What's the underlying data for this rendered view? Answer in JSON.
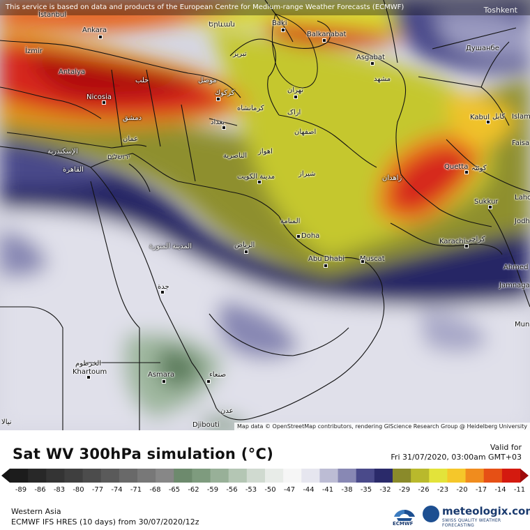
{
  "disclaimer": "This service is based on data and products of the European Centre for Medium-range Weather Forecasts (ECMWF)",
  "corner_city": "Toshkent",
  "attribution": "Map data © OpenStreetMap contributors, rendering GIScience Research Group @ Heidelberg University",
  "cities": {
    "istanbul": "İstanbul",
    "ankara": "Ankara",
    "izmir": "İzmir",
    "antalya": "Antalya",
    "nicosia": "Nicosia",
    "yerevan": "Երևան",
    "baki": "Baki",
    "balkanabat": "Balkanabat",
    "ashgabat": "Asgabat",
    "dushanbe": "Душанбе",
    "tabriz": "تبریز",
    "mosul": "موصل",
    "aleppo": "حلب",
    "kirkuk": "كركوك",
    "tehran": "تهران",
    "mashhad": "مشهد",
    "kermanshah": "کرمانشاه",
    "arak": "اراک",
    "baghdad": "بغداد",
    "damascus": "دمشق",
    "isfahan": "اصفهان",
    "kabul": "Kabul",
    "kabul_ar": "کابل",
    "islamabad": "Islam",
    "amman": "عمان",
    "jerusalem": "ירושלים",
    "alexandria": "الإسكندرية",
    "ahvaz": "اهواز",
    "nasiriyah": "الناصرية",
    "faisalabad": "Faisa",
    "cairo": "القاهرة",
    "kuwait": "مدينة الكويت",
    "shiraz": "شیراز",
    "zahedan": "زاهدان",
    "quetta": "Quetta",
    "quetta_ar": "کوئٹہ",
    "sukkur": "Sukkur",
    "lahore": "Lahore",
    "manama": "المنامة",
    "doha": "Doha",
    "jodhpur": "Jodh",
    "medina": "المدينة المنورة",
    "riyadh": "الرياض",
    "karachi": "Karachi",
    "karachi_ar": "کراچی",
    "abu_dhabi": "Abu Dhabi",
    "muscat": "Muscat",
    "ahmedabad": "Ahmed",
    "jeddah": "جدة",
    "jamnagar": "Jamnaga",
    "mumbai": "Mun",
    "khartoum_ar": "الخرطوم",
    "khartoum": "Khartoum",
    "asmara": "Asmara",
    "sanaa": "صنعاء",
    "aden": "عدن",
    "djibouti": "Djibouti",
    "nyala": "نيالا"
  },
  "footer": {
    "title": "Sat WV 300hPa simulation (°C)",
    "valid_label": "Valid for",
    "valid_time": "Fri 31/07/2020, 03:00am GMT+03",
    "region": "Western Asia",
    "model": "ECMWF IFS HRES (10 days) from 30/07/2020/12z",
    "ecmwf_label": "ECMWF",
    "brand": "meteologix.com",
    "brand_tagline": "SWISS QUALITY WEATHER FORECASTING"
  },
  "scale": {
    "ticks": [
      "-89",
      "-86",
      "-83",
      "-80",
      "-77",
      "-74",
      "-71",
      "-68",
      "-65",
      "-62",
      "-59",
      "-56",
      "-53",
      "-50",
      "-47",
      "-44",
      "-41",
      "-38",
      "-35",
      "-32",
      "-29",
      "-26",
      "-23",
      "-20",
      "-17",
      "-14",
      "-11"
    ],
    "colors": [
      "#141414",
      "#1c1c1c",
      "#282828",
      "#343434",
      "#3f3f3f",
      "#4c4c4c",
      "#5a5a5a",
      "#696969",
      "#787878",
      "#878787",
      "#6d8a6d",
      "#7e9b7e",
      "#98b098",
      "#b4c6b4",
      "#d0dad0",
      "#e8ece8",
      "#f6f6f6",
      "#e6e6ef",
      "#bcbcd4",
      "#8888b4",
      "#4a4a8a",
      "#2a2a6a",
      "#8a8a2a",
      "#b9b92c",
      "#e3e33a",
      "#f5c72a",
      "#f08c1e",
      "#e65015",
      "#d41a0f",
      "#9e0a0a"
    ]
  }
}
